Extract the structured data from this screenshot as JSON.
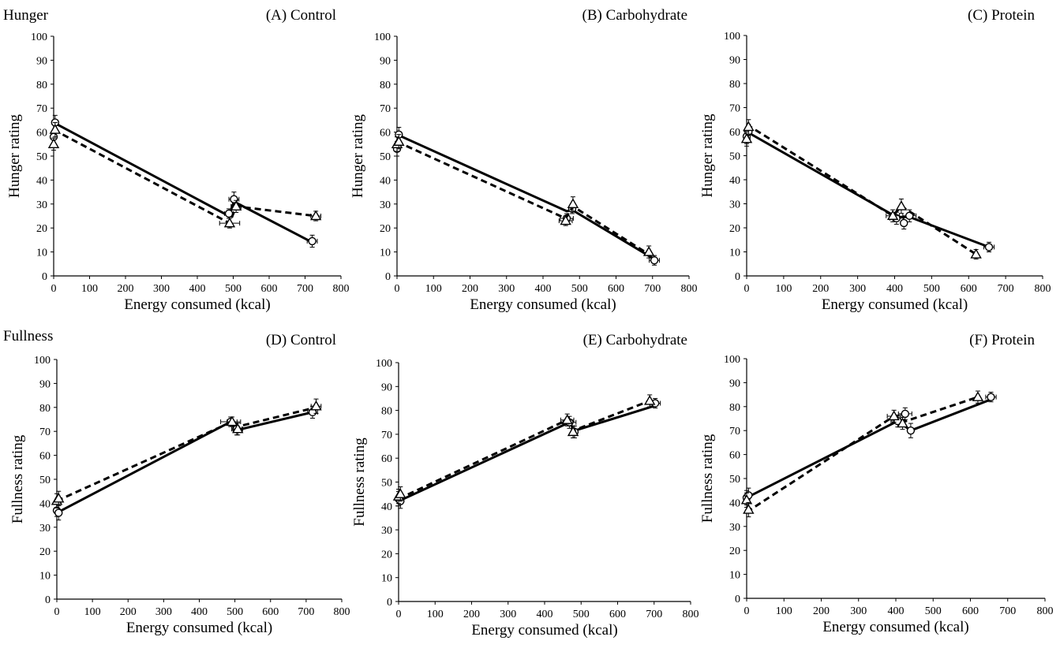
{
  "figure": {
    "section_labels": [
      "Hunger",
      "Fullness"
    ]
  },
  "chart_data": [
    {
      "type": "line",
      "title": "(A) Control",
      "section_label": "Hunger",
      "xlabel": "Energy consumed (kcal)",
      "ylabel": "Hunger rating",
      "xlim": [
        0,
        800
      ],
      "ylim": [
        0,
        100
      ],
      "xticks": [
        0,
        100,
        200,
        300,
        400,
        500,
        600,
        700,
        800
      ],
      "yticks": [
        0,
        10,
        20,
        30,
        40,
        50,
        60,
        70,
        80,
        90,
        100
      ],
      "grid": false,
      "series": [
        {
          "style": "solid",
          "marker": "circle",
          "points": [
            {
              "x": 0,
              "y": 58,
              "yerr": 2.5
            },
            {
              "x": 4,
              "y": 64,
              "yerr": 3,
              "xerr": 8
            },
            {
              "x": 488,
              "y": 26,
              "yerr": 2,
              "xerr": 12
            },
            {
              "x": 502,
              "y": 32,
              "yerr": 3,
              "xerr": 14
            },
            {
              "x": 720,
              "y": 14.5,
              "yerr": 2.5,
              "xerr": 14
            }
          ],
          "line": [
            [
              0,
              64
            ],
            [
              488,
              25
            ],
            [
              502,
              31
            ],
            [
              720,
              14
            ]
          ]
        },
        {
          "style": "dashed",
          "marker": "triangle",
          "points": [
            {
              "x": 0,
              "y": 55,
              "yerr": 2.5
            },
            {
              "x": 4,
              "y": 61,
              "yerr": 3
            },
            {
              "x": 490,
              "y": 22,
              "yerr": 2,
              "xerr": 28
            },
            {
              "x": 508,
              "y": 29,
              "yerr": 2.5,
              "xerr": 14
            },
            {
              "x": 730,
              "y": 25,
              "yerr": 2,
              "xerr": 14
            }
          ],
          "line": [
            [
              0,
              61
            ],
            [
              490,
              22
            ],
            [
              508,
              29
            ],
            [
              730,
              25
            ]
          ]
        }
      ]
    },
    {
      "type": "line",
      "title": "(B) Carbohydrate",
      "xlabel": "Energy consumed (kcal)",
      "ylabel": "Hunger rating",
      "xlim": [
        0,
        800
      ],
      "ylim": [
        0,
        100
      ],
      "xticks": [
        0,
        100,
        200,
        300,
        400,
        500,
        600,
        700,
        800
      ],
      "yticks": [
        0,
        10,
        20,
        30,
        40,
        50,
        60,
        70,
        80,
        90,
        100
      ],
      "grid": false,
      "series": [
        {
          "style": "solid",
          "marker": "circle",
          "points": [
            {
              "x": 0,
              "y": 53,
              "yerr": 3
            },
            {
              "x": 5,
              "y": 59,
              "yerr": 3
            },
            {
              "x": 465,
              "y": 24,
              "yerr": 2,
              "xerr": 18
            },
            {
              "x": 480,
              "y": 28,
              "yerr": 2
            },
            {
              "x": 705,
              "y": 6.5,
              "yerr": 2,
              "xerr": 14
            }
          ],
          "line": [
            [
              0,
              59
            ],
            [
              465,
              27
            ],
            [
              480,
              27.5
            ],
            [
              705,
              7
            ]
          ]
        },
        {
          "style": "dashed",
          "marker": "triangle",
          "points": [
            {
              "x": 0,
              "y": 55,
              "yerr": 3
            },
            {
              "x": 5,
              "y": 56,
              "yerr": 3
            },
            {
              "x": 462,
              "y": 23,
              "yerr": 2,
              "xerr": 18
            },
            {
              "x": 482,
              "y": 30,
              "yerr": 3
            },
            {
              "x": 690,
              "y": 10,
              "yerr": 2.5
            }
          ],
          "line": [
            [
              0,
              56
            ],
            [
              462,
              24
            ],
            [
              482,
              29
            ],
            [
              690,
              9
            ]
          ]
        }
      ]
    },
    {
      "type": "line",
      "title": "(C) Protein",
      "xlabel": "Energy consumed (kcal)",
      "ylabel": "Hunger rating",
      "xlim": [
        0,
        800
      ],
      "ylim": [
        0,
        100
      ],
      "xticks": [
        0,
        100,
        200,
        300,
        400,
        500,
        600,
        700,
        800
      ],
      "yticks": [
        0,
        10,
        20,
        30,
        40,
        50,
        60,
        70,
        80,
        90,
        100
      ],
      "grid": false,
      "series": [
        {
          "style": "solid",
          "marker": "circle",
          "points": [
            {
              "x": 0,
              "y": 58,
              "yerr": 3
            },
            {
              "x": 5,
              "y": 60,
              "yerr": 3
            },
            {
              "x": 405,
              "y": 24,
              "yerr": 2.5,
              "xerr": 18
            },
            {
              "x": 425,
              "y": 22,
              "yerr": 2.5
            },
            {
              "x": 440,
              "y": 25,
              "yerr": 2.5,
              "xerr": 18
            },
            {
              "x": 655,
              "y": 12,
              "yerr": 2,
              "xerr": 14
            }
          ],
          "line": [
            [
              0,
              60
            ],
            [
              405,
              24.5
            ],
            [
              440,
              24.5
            ],
            [
              655,
              12
            ]
          ]
        },
        {
          "style": "dashed",
          "marker": "triangle",
          "points": [
            {
              "x": 0,
              "y": 57,
              "yerr": 3
            },
            {
              "x": 5,
              "y": 62,
              "yerr": 3
            },
            {
              "x": 395,
              "y": 25,
              "yerr": 2.5,
              "xerr": 18
            },
            {
              "x": 418,
              "y": 29,
              "yerr": 3
            },
            {
              "x": 620,
              "y": 9,
              "yerr": 2
            }
          ],
          "line": [
            [
              0,
              63
            ],
            [
              395,
              25
            ],
            [
              418,
              29
            ],
            [
              620,
              9
            ]
          ]
        }
      ]
    },
    {
      "type": "line",
      "title": "(D) Control",
      "section_label": "Fullness",
      "xlabel": "Energy consumed (kcal)",
      "ylabel": "Fullness rating",
      "xlim": [
        0,
        800
      ],
      "ylim": [
        0,
        100
      ],
      "xticks": [
        0,
        100,
        200,
        300,
        400,
        500,
        600,
        700,
        800
      ],
      "yticks": [
        0,
        10,
        20,
        30,
        40,
        50,
        60,
        70,
        80,
        90,
        100
      ],
      "grid": false,
      "series": [
        {
          "style": "solid",
          "marker": "circle",
          "points": [
            {
              "x": 0,
              "y": 37,
              "yerr": 2.5
            },
            {
              "x": 5,
              "y": 36,
              "yerr": 3
            },
            {
              "x": 488,
              "y": 74,
              "yerr": 2,
              "xerr": 28
            },
            {
              "x": 505,
              "y": 71,
              "yerr": 2.5,
              "xerr": 14
            },
            {
              "x": 718,
              "y": 78,
              "yerr": 2.5,
              "xerr": 14
            }
          ],
          "line": [
            [
              0,
              36
            ],
            [
              488,
              74
            ],
            [
              505,
              70.5
            ],
            [
              718,
              78
            ]
          ]
        },
        {
          "style": "dashed",
          "marker": "triangle",
          "points": [
            {
              "x": 0,
              "y": 41,
              "yerr": 3
            },
            {
              "x": 5,
              "y": 42,
              "yerr": 3
            },
            {
              "x": 492,
              "y": 74,
              "yerr": 2,
              "xerr": 14
            },
            {
              "x": 508,
              "y": 71,
              "yerr": 2.5,
              "xerr": 14
            },
            {
              "x": 728,
              "y": 80.5,
              "yerr": 3,
              "xerr": 14
            }
          ],
          "line": [
            [
              0,
              41
            ],
            [
              492,
              74
            ],
            [
              508,
              72
            ],
            [
              728,
              80
            ]
          ]
        }
      ]
    },
    {
      "type": "line",
      "title": "(E) Carbohydrate",
      "xlabel": "Energy consumed (kcal)",
      "ylabel": "Fullness rating",
      "xlim": [
        0,
        800
      ],
      "ylim": [
        0,
        100
      ],
      "xticks": [
        0,
        100,
        200,
        300,
        400,
        500,
        600,
        700,
        800
      ],
      "yticks": [
        0,
        10,
        20,
        30,
        40,
        50,
        60,
        70,
        80,
        90,
        100
      ],
      "grid": false,
      "series": [
        {
          "style": "solid",
          "marker": "circle",
          "points": [
            {
              "x": 0,
              "y": 43,
              "yerr": 3
            },
            {
              "x": 5,
              "y": 42,
              "yerr": 3
            },
            {
              "x": 468,
              "y": 75,
              "yerr": 2.5,
              "xerr": 18
            },
            {
              "x": 482,
              "y": 71,
              "yerr": 2.5
            },
            {
              "x": 703,
              "y": 83,
              "yerr": 2,
              "xerr": 14
            }
          ],
          "line": [
            [
              0,
              42
            ],
            [
              468,
              75
            ],
            [
              482,
              71.5
            ],
            [
              703,
              82
            ]
          ]
        },
        {
          "style": "dashed",
          "marker": "triangle",
          "points": [
            {
              "x": 0,
              "y": 44,
              "yerr": 3
            },
            {
              "x": 5,
              "y": 45,
              "yerr": 3
            },
            {
              "x": 462,
              "y": 76,
              "yerr": 2.5,
              "xerr": 18
            },
            {
              "x": 478,
              "y": 71,
              "yerr": 2.5
            },
            {
              "x": 688,
              "y": 84,
              "yerr": 2.5
            }
          ],
          "line": [
            [
              0,
              43
            ],
            [
              462,
              76
            ],
            [
              478,
              71.5
            ],
            [
              688,
              84
            ]
          ]
        }
      ]
    },
    {
      "type": "line",
      "title": "(F) Protein",
      "xlabel": "Energy consumed (kcal)",
      "ylabel": "Fullness rating",
      "xlim": [
        0,
        800
      ],
      "ylim": [
        0,
        100
      ],
      "xticks": [
        0,
        100,
        200,
        300,
        400,
        500,
        600,
        700,
        800
      ],
      "yticks": [
        0,
        10,
        20,
        30,
        40,
        50,
        60,
        70,
        80,
        90,
        100
      ],
      "grid": false,
      "series": [
        {
          "style": "solid",
          "marker": "circle",
          "points": [
            {
              "x": 0,
              "y": 42,
              "yerr": 3
            },
            {
              "x": 5,
              "y": 43,
              "yerr": 3
            },
            {
              "x": 405,
              "y": 74,
              "yerr": 2.5,
              "xerr": 18
            },
            {
              "x": 425,
              "y": 77,
              "yerr": 2.5,
              "xerr": 18
            },
            {
              "x": 440,
              "y": 70,
              "yerr": 3
            },
            {
              "x": 655,
              "y": 84,
              "yerr": 2,
              "xerr": 14
            }
          ],
          "line": [
            [
              0,
              42
            ],
            [
              405,
              74
            ],
            [
              440,
              70
            ],
            [
              655,
              83
            ]
          ]
        },
        {
          "style": "dashed",
          "marker": "triangle",
          "points": [
            {
              "x": 0,
              "y": 41,
              "yerr": 3
            },
            {
              "x": 5,
              "y": 37,
              "yerr": 3
            },
            {
              "x": 395,
              "y": 76,
              "yerr": 2.5,
              "xerr": 18
            },
            {
              "x": 418,
              "y": 73,
              "yerr": 2.5
            },
            {
              "x": 620,
              "y": 84,
              "yerr": 2.5
            }
          ],
          "line": [
            [
              0,
              36
            ],
            [
              395,
              76
            ],
            [
              418,
              73.5
            ],
            [
              620,
              84
            ]
          ]
        }
      ]
    }
  ]
}
